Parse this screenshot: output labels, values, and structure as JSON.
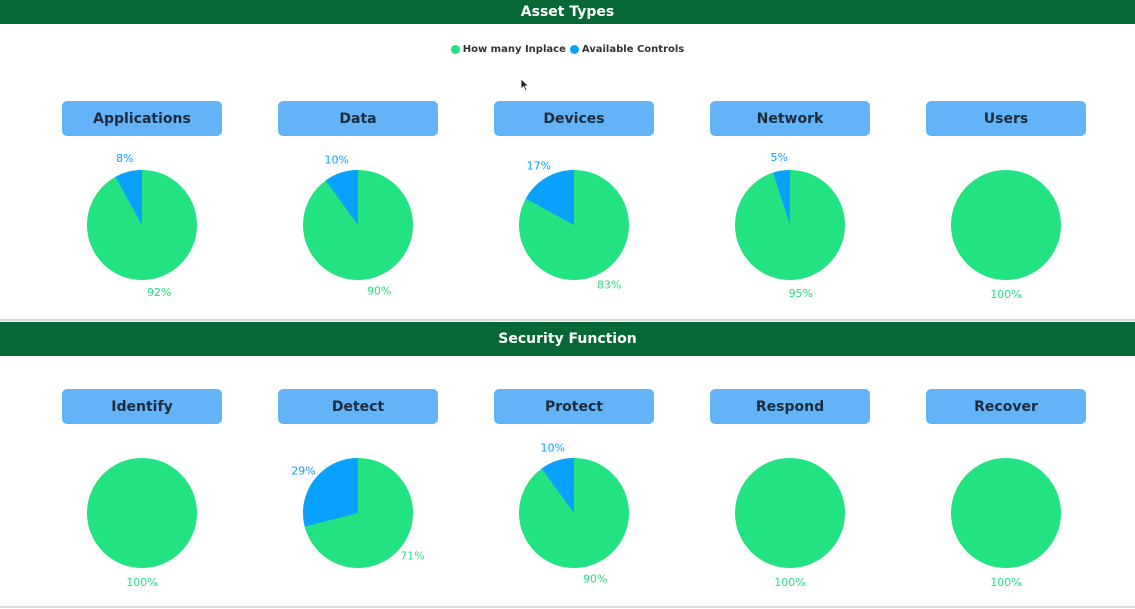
{
  "sections": [
    {
      "title": "Asset Types"
    },
    {
      "title": "Security Function"
    }
  ],
  "legend": [
    {
      "label": "How many Inplace",
      "color": "#23e282"
    },
    {
      "label": "Available Controls",
      "color": "#0aa0ff"
    }
  ],
  "chart_data": [
    {
      "type": "pie",
      "title": "Applications",
      "labels": [
        "How many Inplace",
        "Available Controls"
      ],
      "values": [
        92,
        8
      ],
      "display": [
        "92%",
        "8%"
      ]
    },
    {
      "type": "pie",
      "title": "Data",
      "labels": [
        "How many Inplace",
        "Available Controls"
      ],
      "values": [
        90,
        10
      ],
      "display": [
        "90%",
        "10%"
      ]
    },
    {
      "type": "pie",
      "title": "Devices",
      "labels": [
        "How many Inplace",
        "Available Controls"
      ],
      "values": [
        83,
        17
      ],
      "display": [
        "83%",
        "17%"
      ]
    },
    {
      "type": "pie",
      "title": "Network",
      "labels": [
        "How many Inplace",
        "Available Controls"
      ],
      "values": [
        95,
        5
      ],
      "display": [
        "95%",
        "5%"
      ]
    },
    {
      "type": "pie",
      "title": "Users",
      "labels": [
        "How many Inplace",
        "Available Controls"
      ],
      "values": [
        100,
        0
      ],
      "display": [
        "100%",
        ""
      ]
    },
    {
      "type": "pie",
      "title": "Identify",
      "labels": [
        "How many Inplace",
        "Available Controls"
      ],
      "values": [
        100,
        0
      ],
      "display": [
        "100%",
        ""
      ]
    },
    {
      "type": "pie",
      "title": "Detect",
      "labels": [
        "How many Inplace",
        "Available Controls"
      ],
      "values": [
        71,
        29
      ],
      "display": [
        "71%",
        "29%"
      ]
    },
    {
      "type": "pie",
      "title": "Protect",
      "labels": [
        "How many Inplace",
        "Available Controls"
      ],
      "values": [
        90,
        10
      ],
      "display": [
        "90%",
        "10%"
      ]
    },
    {
      "type": "pie",
      "title": "Respond",
      "labels": [
        "How many Inplace",
        "Available Controls"
      ],
      "values": [
        100,
        0
      ],
      "display": [
        "100%",
        ""
      ]
    },
    {
      "type": "pie",
      "title": "Recover",
      "labels": [
        "How many Inplace",
        "Available Controls"
      ],
      "values": [
        100,
        0
      ],
      "display": [
        "100%",
        ""
      ]
    }
  ]
}
